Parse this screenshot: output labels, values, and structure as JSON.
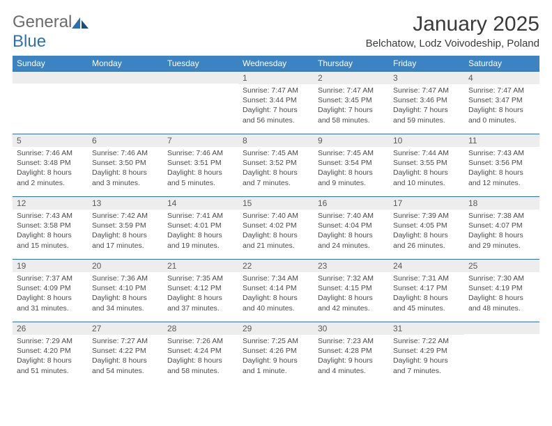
{
  "logo": {
    "text_general": "General",
    "text_blue": "Blue"
  },
  "header": {
    "month_title": "January 2025",
    "location": "Belchatow, Lodz Voivodeship, Poland"
  },
  "calendar": {
    "type": "table",
    "header_bg": "#3b83c2",
    "header_fg": "#ffffff",
    "daynum_bg": "#ededed",
    "row_border_color": "#2f6fb0",
    "background_color": "#ffffff",
    "text_color": "#4a4a4a",
    "days_of_week": [
      "Sunday",
      "Monday",
      "Tuesday",
      "Wednesday",
      "Thursday",
      "Friday",
      "Saturday"
    ],
    "cells": [
      null,
      null,
      null,
      {
        "n": "1",
        "sr": "7:47 AM",
        "ss": "3:44 PM",
        "dl": "7 hours and 56 minutes."
      },
      {
        "n": "2",
        "sr": "7:47 AM",
        "ss": "3:45 PM",
        "dl": "7 hours and 58 minutes."
      },
      {
        "n": "3",
        "sr": "7:47 AM",
        "ss": "3:46 PM",
        "dl": "7 hours and 59 minutes."
      },
      {
        "n": "4",
        "sr": "7:47 AM",
        "ss": "3:47 PM",
        "dl": "8 hours and 0 minutes."
      },
      {
        "n": "5",
        "sr": "7:46 AM",
        "ss": "3:48 PM",
        "dl": "8 hours and 2 minutes."
      },
      {
        "n": "6",
        "sr": "7:46 AM",
        "ss": "3:50 PM",
        "dl": "8 hours and 3 minutes."
      },
      {
        "n": "7",
        "sr": "7:46 AM",
        "ss": "3:51 PM",
        "dl": "8 hours and 5 minutes."
      },
      {
        "n": "8",
        "sr": "7:45 AM",
        "ss": "3:52 PM",
        "dl": "8 hours and 7 minutes."
      },
      {
        "n": "9",
        "sr": "7:45 AM",
        "ss": "3:54 PM",
        "dl": "8 hours and 9 minutes."
      },
      {
        "n": "10",
        "sr": "7:44 AM",
        "ss": "3:55 PM",
        "dl": "8 hours and 10 minutes."
      },
      {
        "n": "11",
        "sr": "7:43 AM",
        "ss": "3:56 PM",
        "dl": "8 hours and 12 minutes."
      },
      {
        "n": "12",
        "sr": "7:43 AM",
        "ss": "3:58 PM",
        "dl": "8 hours and 15 minutes."
      },
      {
        "n": "13",
        "sr": "7:42 AM",
        "ss": "3:59 PM",
        "dl": "8 hours and 17 minutes."
      },
      {
        "n": "14",
        "sr": "7:41 AM",
        "ss": "4:01 PM",
        "dl": "8 hours and 19 minutes."
      },
      {
        "n": "15",
        "sr": "7:40 AM",
        "ss": "4:02 PM",
        "dl": "8 hours and 21 minutes."
      },
      {
        "n": "16",
        "sr": "7:40 AM",
        "ss": "4:04 PM",
        "dl": "8 hours and 24 minutes."
      },
      {
        "n": "17",
        "sr": "7:39 AM",
        "ss": "4:05 PM",
        "dl": "8 hours and 26 minutes."
      },
      {
        "n": "18",
        "sr": "7:38 AM",
        "ss": "4:07 PM",
        "dl": "8 hours and 29 minutes."
      },
      {
        "n": "19",
        "sr": "7:37 AM",
        "ss": "4:09 PM",
        "dl": "8 hours and 31 minutes."
      },
      {
        "n": "20",
        "sr": "7:36 AM",
        "ss": "4:10 PM",
        "dl": "8 hours and 34 minutes."
      },
      {
        "n": "21",
        "sr": "7:35 AM",
        "ss": "4:12 PM",
        "dl": "8 hours and 37 minutes."
      },
      {
        "n": "22",
        "sr": "7:34 AM",
        "ss": "4:14 PM",
        "dl": "8 hours and 40 minutes."
      },
      {
        "n": "23",
        "sr": "7:32 AM",
        "ss": "4:15 PM",
        "dl": "8 hours and 42 minutes."
      },
      {
        "n": "24",
        "sr": "7:31 AM",
        "ss": "4:17 PM",
        "dl": "8 hours and 45 minutes."
      },
      {
        "n": "25",
        "sr": "7:30 AM",
        "ss": "4:19 PM",
        "dl": "8 hours and 48 minutes."
      },
      {
        "n": "26",
        "sr": "7:29 AM",
        "ss": "4:20 PM",
        "dl": "8 hours and 51 minutes."
      },
      {
        "n": "27",
        "sr": "7:27 AM",
        "ss": "4:22 PM",
        "dl": "8 hours and 54 minutes."
      },
      {
        "n": "28",
        "sr": "7:26 AM",
        "ss": "4:24 PM",
        "dl": "8 hours and 58 minutes."
      },
      {
        "n": "29",
        "sr": "7:25 AM",
        "ss": "4:26 PM",
        "dl": "9 hours and 1 minute."
      },
      {
        "n": "30",
        "sr": "7:23 AM",
        "ss": "4:28 PM",
        "dl": "9 hours and 4 minutes."
      },
      {
        "n": "31",
        "sr": "7:22 AM",
        "ss": "4:29 PM",
        "dl": "9 hours and 7 minutes."
      },
      null
    ],
    "labels": {
      "sunrise": "Sunrise:",
      "sunset": "Sunset:",
      "daylight": "Daylight:"
    }
  }
}
